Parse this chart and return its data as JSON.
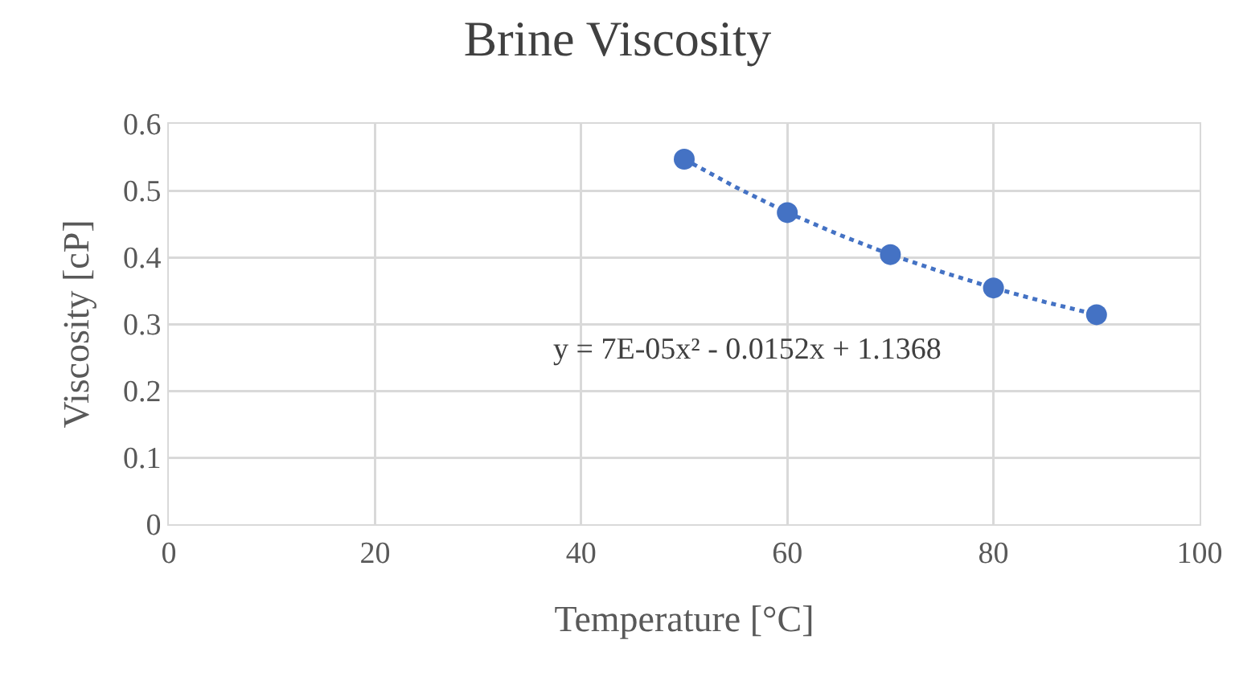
{
  "chart_data": {
    "type": "scatter",
    "title": "Brine Viscosity",
    "xlabel": "Temperature [°C]",
    "ylabel": "Viscosity [cP]",
    "x": [
      50,
      60,
      70,
      80,
      90
    ],
    "series": [
      {
        "color": "#4472c4",
        "marker": "circle",
        "values": [
          0.547,
          0.467,
          0.404,
          0.354,
          0.314
        ]
      },
      {
        "type": "line",
        "color": "#4472c4",
        "marker": "none",
        "line_style": "dotted",
        "x": [
          50,
          55,
          60,
          65,
          70,
          75,
          80,
          85,
          90
        ],
        "values": [
          0.547,
          0.505,
          0.467,
          0.434,
          0.404,
          0.378,
          0.354,
          0.333,
          0.314
        ]
      }
    ],
    "annotations": [
      "y = 7E-05x² - 0.0152x + 1.1368"
    ],
    "xlim": [
      0,
      100
    ],
    "xticks": [
      0,
      20,
      40,
      60,
      80,
      100
    ],
    "ylim": [
      0,
      0.6
    ],
    "yticks": [
      0,
      0.1,
      0.2,
      0.3,
      0.4,
      0.5,
      0.6
    ],
    "grid": true
  }
}
